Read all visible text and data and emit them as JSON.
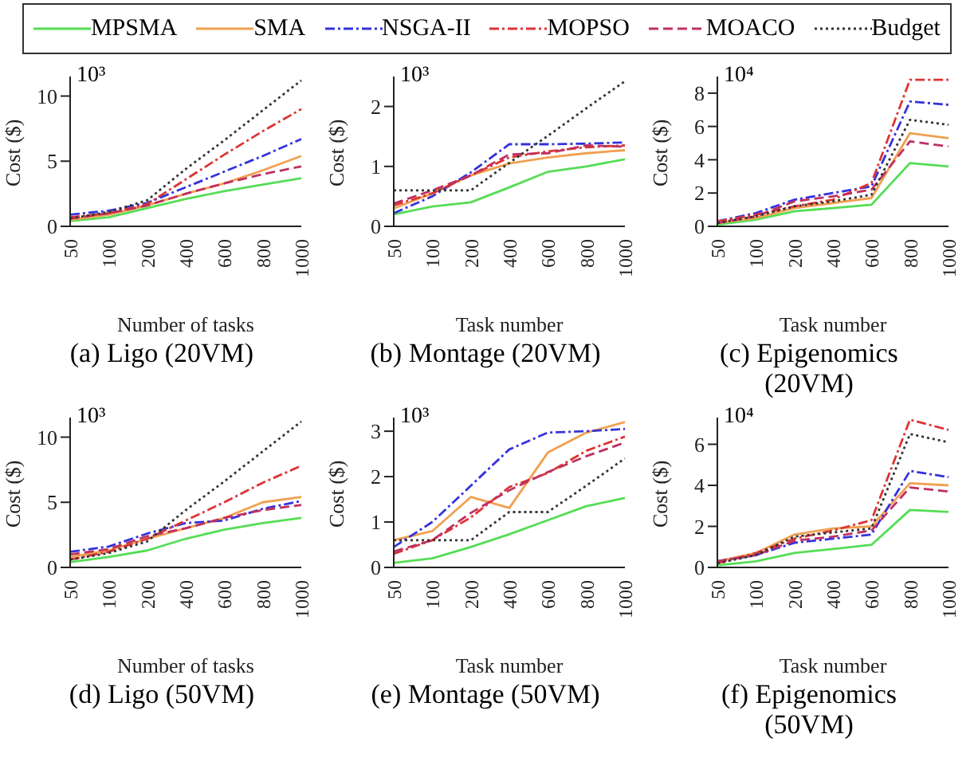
{
  "chart_data": [
    {
      "type": "line",
      "title": "(a) Ligo (20VM)",
      "xlabel": "Number of tasks",
      "ylabel": "Cost ($)",
      "annotations": [
        "10³"
      ],
      "legend": "top",
      "categories": [
        "50",
        "100",
        "200",
        "400",
        "600",
        "800",
        "1000"
      ],
      "ylim": [
        0,
        11.5
      ],
      "yticks": [
        0,
        5,
        10
      ],
      "series": [
        {
          "name": "MPSMA",
          "color": "#55dd55",
          "line_style": "solid",
          "values": [
            0.4,
            0.7,
            1.4,
            2.1,
            2.7,
            3.2,
            3.7
          ]
        },
        {
          "name": "SMA",
          "color": "#f0a050",
          "line_style": "solid",
          "values": [
            0.5,
            0.9,
            1.6,
            2.5,
            3.3,
            4.3,
            5.4
          ]
        },
        {
          "name": "NSGA-II",
          "color": "#3333dd",
          "line_style": "dashdot",
          "values": [
            0.9,
            1.2,
            1.8,
            3.0,
            4.2,
            5.4,
            6.7
          ]
        },
        {
          "name": "MOPSO",
          "color": "#dd3333",
          "line_style": "dashdot",
          "values": [
            0.7,
            1.0,
            1.7,
            3.6,
            5.5,
            7.3,
            9.0
          ]
        },
        {
          "name": "MOACO",
          "color": "#c03060",
          "line_style": "dashed",
          "values": [
            0.6,
            1.0,
            1.6,
            2.5,
            3.3,
            4.0,
            4.6
          ]
        },
        {
          "name": "Budget",
          "color": "#333333",
          "line_style": "dotted",
          "values": [
            0.6,
            1.1,
            2.0,
            4.4,
            6.6,
            8.9,
            11.2
          ]
        }
      ]
    },
    {
      "type": "line",
      "title": "(b) Montage (20VM)",
      "xlabel": "Task number",
      "ylabel": "Cost ($)",
      "annotations": [
        "10³"
      ],
      "categories": [
        "50",
        "100",
        "200",
        "400",
        "600",
        "800",
        "1000"
      ],
      "ylim": [
        0,
        2.5
      ],
      "yticks": [
        0,
        1,
        2
      ],
      "series": [
        {
          "color": "#55dd55",
          "line_style": "solid",
          "values": [
            0.2,
            0.33,
            0.4,
            0.65,
            0.91,
            1.0,
            1.12
          ]
        },
        {
          "color": "#f0a050",
          "line_style": "solid",
          "values": [
            0.3,
            0.55,
            0.85,
            1.05,
            1.15,
            1.22,
            1.27
          ]
        },
        {
          "color": "#3333dd",
          "line_style": "dashdot",
          "values": [
            0.22,
            0.5,
            0.9,
            1.37,
            1.37,
            1.38,
            1.4
          ]
        },
        {
          "color": "#dd3333",
          "line_style": "dashdot",
          "values": [
            0.35,
            0.55,
            0.85,
            1.15,
            1.25,
            1.32,
            1.35
          ]
        },
        {
          "color": "#c03060",
          "line_style": "dashed",
          "values": [
            0.38,
            0.6,
            0.85,
            1.2,
            1.22,
            1.35,
            1.33
          ]
        },
        {
          "color": "#333333",
          "line_style": "dotted",
          "values": [
            0.6,
            0.6,
            0.6,
            1.06,
            1.51,
            1.97,
            2.42
          ]
        }
      ]
    },
    {
      "type": "line",
      "title": "(c) Epigenomics (20VM)",
      "xlabel": "Task number",
      "ylabel": "Cost ($)",
      "annotations": [
        "10⁴"
      ],
      "categories": [
        "50",
        "100",
        "200",
        "400",
        "600",
        "800",
        "1000"
      ],
      "ylim": [
        0,
        9
      ],
      "yticks": [
        0,
        2,
        4,
        6,
        8
      ],
      "series": [
        {
          "color": "#55dd55",
          "line_style": "solid",
          "values": [
            0.1,
            0.4,
            0.9,
            1.1,
            1.3,
            3.8,
            3.6
          ]
        },
        {
          "color": "#f0a050",
          "line_style": "solid",
          "values": [
            0.2,
            0.5,
            1.1,
            1.4,
            1.7,
            5.6,
            5.3
          ]
        },
        {
          "color": "#3333dd",
          "line_style": "dashdot",
          "values": [
            0.3,
            0.8,
            1.6,
            2.0,
            2.4,
            7.5,
            7.3
          ]
        },
        {
          "color": "#dd3333",
          "line_style": "dashdot",
          "values": [
            0.3,
            0.7,
            1.2,
            1.6,
            2.6,
            8.8,
            8.8
          ]
        },
        {
          "color": "#c03060",
          "line_style": "dashed",
          "values": [
            0.2,
            0.6,
            1.5,
            1.8,
            2.2,
            5.1,
            4.8
          ]
        },
        {
          "color": "#333333",
          "line_style": "dotted",
          "values": [
            0.2,
            0.6,
            1.2,
            1.5,
            1.9,
            6.4,
            6.1
          ]
        }
      ]
    },
    {
      "type": "line",
      "title": "(d) Ligo (50VM)",
      "xlabel": "Number of tasks",
      "ylabel": "Cost ($)",
      "annotations": [
        "10³"
      ],
      "categories": [
        "50",
        "100",
        "200",
        "400",
        "600",
        "800",
        "1000"
      ],
      "ylim": [
        0,
        11.5
      ],
      "yticks": [
        0,
        5,
        10
      ],
      "series": [
        {
          "color": "#55dd55",
          "line_style": "solid",
          "values": [
            0.4,
            0.8,
            1.3,
            2.2,
            2.9,
            3.4,
            3.8
          ]
        },
        {
          "color": "#f0a050",
          "line_style": "solid",
          "values": [
            0.8,
            1.3,
            2.2,
            3.0,
            3.8,
            5.0,
            5.4
          ]
        },
        {
          "color": "#3333dd",
          "line_style": "dashdot",
          "values": [
            1.2,
            1.6,
            2.6,
            3.4,
            3.6,
            4.5,
            5.1
          ]
        },
        {
          "color": "#dd3333",
          "line_style": "dashdot",
          "values": [
            0.6,
            1.2,
            2.2,
            3.6,
            5.0,
            6.5,
            7.8
          ]
        },
        {
          "color": "#c03060",
          "line_style": "dashed",
          "values": [
            1.0,
            1.4,
            2.4,
            3.0,
            3.8,
            4.4,
            4.8
          ]
        },
        {
          "color": "#333333",
          "line_style": "dotted",
          "values": [
            0.6,
            1.1,
            2.0,
            4.4,
            6.6,
            8.9,
            11.2
          ]
        }
      ]
    },
    {
      "type": "line",
      "title": "(e) Montage (50VM)",
      "xlabel": "Task number",
      "ylabel": "Cost ($)",
      "annotations": [
        "10³"
      ],
      "categories": [
        "50",
        "100",
        "200",
        "400",
        "600",
        "800",
        "1000"
      ],
      "ylim": [
        0,
        3.3
      ],
      "yticks": [
        0,
        1,
        2,
        3
      ],
      "series": [
        {
          "color": "#55dd55",
          "line_style": "solid",
          "values": [
            0.1,
            0.2,
            0.45,
            0.73,
            1.04,
            1.35,
            1.53
          ]
        },
        {
          "color": "#f0a050",
          "line_style": "solid",
          "values": [
            0.6,
            0.8,
            1.55,
            1.31,
            2.53,
            2.97,
            3.2
          ]
        },
        {
          "color": "#3333dd",
          "line_style": "dashdot",
          "values": [
            0.45,
            1.0,
            1.8,
            2.6,
            2.97,
            3.0,
            3.05
          ]
        },
        {
          "color": "#dd3333",
          "line_style": "dashdot",
          "values": [
            0.3,
            0.6,
            1.1,
            1.77,
            2.08,
            2.57,
            2.88
          ]
        },
        {
          "color": "#c03060",
          "line_style": "dashed",
          "values": [
            0.35,
            0.6,
            1.2,
            1.7,
            2.1,
            2.45,
            2.75
          ]
        },
        {
          "color": "#333333",
          "line_style": "dotted",
          "values": [
            0.6,
            0.6,
            0.6,
            1.22,
            1.22,
            1.8,
            2.4
          ]
        }
      ]
    },
    {
      "type": "line",
      "title": "(f) Epigenomics (50VM)",
      "xlabel": "Task number",
      "ylabel": "Cost ($)",
      "annotations": [
        "10⁴"
      ],
      "categories": [
        "50",
        "100",
        "200",
        "400",
        "600",
        "800",
        "1000"
      ],
      "ylim": [
        0,
        7.3
      ],
      "yticks": [
        0,
        2,
        4,
        6
      ],
      "series": [
        {
          "color": "#55dd55",
          "line_style": "solid",
          "values": [
            0.1,
            0.3,
            0.7,
            0.9,
            1.1,
            2.8,
            2.7
          ]
        },
        {
          "color": "#f0a050",
          "line_style": "solid",
          "values": [
            0.3,
            0.7,
            1.6,
            1.9,
            2.0,
            4.1,
            4.0
          ]
        },
        {
          "color": "#3333dd",
          "line_style": "dashdot",
          "values": [
            0.3,
            0.6,
            1.2,
            1.4,
            1.6,
            4.7,
            4.4
          ]
        },
        {
          "color": "#dd3333",
          "line_style": "dashdot",
          "values": [
            0.2,
            0.7,
            1.4,
            1.8,
            2.3,
            7.2,
            6.7
          ]
        },
        {
          "color": "#c03060",
          "line_style": "dashed",
          "values": [
            0.3,
            0.6,
            1.3,
            1.5,
            1.8,
            3.9,
            3.7
          ]
        },
        {
          "color": "#333333",
          "line_style": "dotted",
          "values": [
            0.2,
            0.6,
            1.5,
            1.7,
            1.9,
            6.5,
            6.1
          ]
        }
      ]
    }
  ]
}
